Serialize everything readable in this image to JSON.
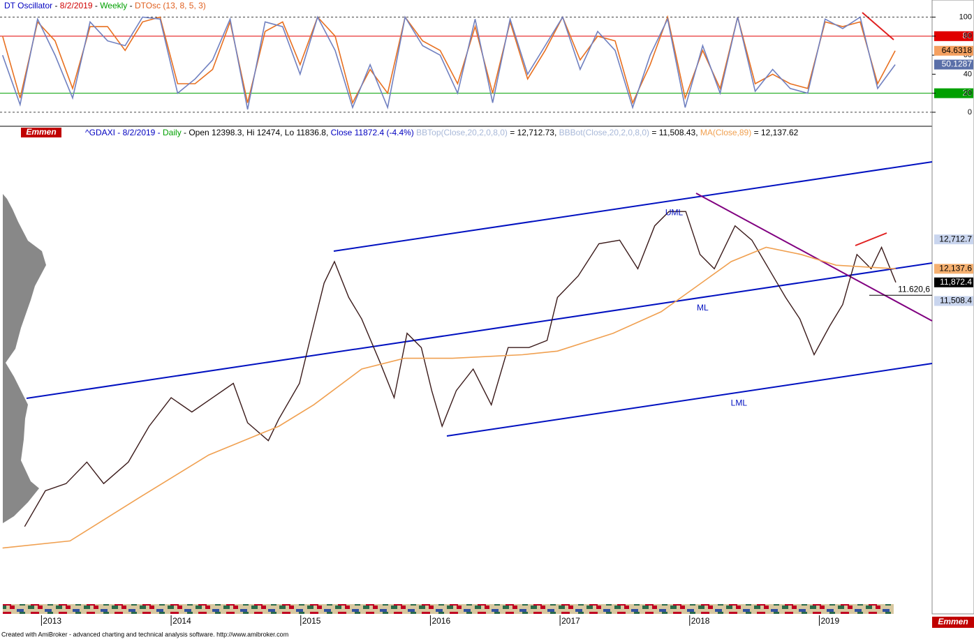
{
  "chart_data": [
    {
      "type": "line",
      "header": [
        {
          "text": "DT Oscillator",
          "color": "#0000c0"
        },
        {
          "text": " - ",
          "color": "#000000"
        },
        {
          "text": "8/2/2019",
          "color": "#d00000"
        },
        {
          "text": " - ",
          "color": "#000000"
        },
        {
          "text": "Weekly",
          "color": "#00a000"
        },
        {
          "text": " - ",
          "color": "#000000"
        },
        {
          "text": "DTOsc (13, 8, 5, 3)",
          "color": "#e06020"
        }
      ],
      "xlim": [
        2012.68,
        2019.87
      ],
      "ylim": [
        -14,
        118
      ],
      "yticks": [
        0,
        20,
        40,
        60,
        80,
        100
      ],
      "levels": [
        {
          "value": 80,
          "color": "#e00000"
        },
        {
          "value": 20,
          "color": "#00a000"
        }
      ],
      "dashed_levels": [
        0,
        100
      ],
      "x": [
        2012.7,
        2012.835,
        2012.97,
        2013.105,
        2013.24,
        2013.375,
        2013.51,
        2013.645,
        2013.78,
        2013.915,
        2014.05,
        2014.185,
        2014.32,
        2014.455,
        2014.59,
        2014.725,
        2014.86,
        2014.995,
        2015.13,
        2015.265,
        2015.4,
        2015.535,
        2015.67,
        2015.805,
        2015.94,
        2016.075,
        2016.21,
        2016.345,
        2016.48,
        2016.615,
        2016.75,
        2016.885,
        2017.02,
        2017.155,
        2017.29,
        2017.425,
        2017.56,
        2017.695,
        2017.83,
        2017.965,
        2018.1,
        2018.235,
        2018.37,
        2018.505,
        2018.64,
        2018.775,
        2018.91,
        2019.045,
        2019.18,
        2019.315,
        2019.45,
        2019.585
      ],
      "series": [
        {
          "color": "#e87020",
          "box_color": "#f5a060",
          "values": [
            80,
            15,
            95,
            75,
            25,
            90,
            90,
            65,
            95,
            100,
            30,
            30,
            45,
            95,
            10,
            85,
            95,
            50,
            100,
            80,
            10,
            45,
            20,
            100,
            75,
            65,
            30,
            90,
            20,
            95,
            35,
            65,
            100,
            55,
            80,
            75,
            10,
            50,
            100,
            15,
            65,
            25,
            100,
            30,
            40,
            30,
            25,
            95,
            90,
            95,
            30,
            64.6318
          ]
        },
        {
          "color": "#7080c0",
          "box_color": "#5a6fa8",
          "values": [
            60,
            8,
            98,
            60,
            15,
            95,
            75,
            70,
            100,
            98,
            20,
            35,
            55,
            98,
            3,
            95,
            90,
            40,
            100,
            65,
            5,
            50,
            5,
            100,
            70,
            60,
            20,
            98,
            10,
            98,
            40,
            70,
            100,
            45,
            85,
            65,
            5,
            60,
            98,
            5,
            70,
            20,
            100,
            22,
            45,
            25,
            20,
            98,
            88,
            100,
            25,
            50.1287
          ]
        }
      ]
    },
    {
      "type": "line",
      "label": "Emmen",
      "header": [
        {
          "text": "^GDAXI - 8/2/2019 - ",
          "color": "#0000c0"
        },
        {
          "text": "Daily",
          "color": "#00a000"
        },
        {
          "text": " - Open 12398.3, Hi 12474, Lo 11836.8, ",
          "color": "#000000"
        },
        {
          "text": "Close 11872.4 (-4.4%)",
          "color": "#0000c0"
        },
        {
          "text": " BBTop(Close,20,2,0,8,0)",
          "color": "#a8b8d8"
        },
        {
          "text": " = 12,712.73, ",
          "color": "#000000"
        },
        {
          "text": "BBBot(Close,20,2,0,8,0)",
          "color": "#a8b8d8"
        },
        {
          "text": " = 11,508.43, ",
          "color": "#000000"
        },
        {
          "text": "MA(Close,89)",
          "color": "#f0a050"
        },
        {
          "text": " = 12,137.62",
          "color": "#000000"
        }
      ],
      "xlim": [
        2012.68,
        2019.87
      ],
      "ylim": [
        5418,
        14911
      ],
      "xticks": [
        2013,
        2014,
        2015,
        2016,
        2017,
        2018,
        2019
      ],
      "annotations": [
        {
          "text": "UML",
          "x": 2017.88,
          "y": 13228
        },
        {
          "text": "ML",
          "x": 2018.1,
          "y": 11368
        },
        {
          "text": "LML",
          "x": 2018.38,
          "y": 9508
        }
      ],
      "right_labels": [
        {
          "value": 12712.7,
          "label": "12,712.7",
          "color": "#c9d5ee",
          "text_color": "#000000"
        },
        {
          "value": 11508.4,
          "label": "11,508.4",
          "color": "#c9d5ee",
          "text_color": "#000000"
        }
      ],
      "level_note": {
        "value": 11620.6,
        "label": "11.620,6"
      },
      "series": [
        {
          "color": "#3a1a1a",
          "last_label": "11,872.4",
          "box_color": "#000000",
          "text_color": "#ffffff",
          "x": [
            2012.87,
            2013.03,
            2013.19,
            2013.35,
            2013.48,
            2013.67,
            2013.83,
            2014.0,
            2014.16,
            2014.32,
            2014.48,
            2014.59,
            2014.75,
            2014.83,
            2014.99,
            2015.07,
            2015.18,
            2015.26,
            2015.37,
            2015.47,
            2015.61,
            2015.72,
            2015.82,
            2015.93,
            2016.01,
            2016.09,
            2016.2,
            2016.33,
            2016.47,
            2016.6,
            2016.76,
            2016.9,
            2016.98,
            2017.14,
            2017.3,
            2017.46,
            2017.6,
            2017.73,
            2017.84,
            2017.97,
            2018.08,
            2018.19,
            2018.35,
            2018.48,
            2018.61,
            2018.74,
            2018.85,
            2018.96,
            2019.08,
            2019.18,
            2019.29,
            2019.4,
            2019.48,
            2019.59
          ],
          "values": [
            7098,
            7798,
            7938,
            8358,
            7938,
            8358,
            9058,
            9618,
            9338,
            9618,
            9898,
            9128,
            8778,
            9198,
            9898,
            10738,
            11858,
            12278,
            11578,
            11158,
            10318,
            9618,
            10878,
            10598,
            9758,
            9058,
            9758,
            10178,
            9478,
            10598,
            10598,
            10738,
            11578,
            11998,
            12628,
            12698,
            12138,
            12978,
            13258,
            13258,
            12418,
            12138,
            12978,
            12698,
            12138,
            11578,
            11158,
            10458,
            11018,
            11438,
            12418,
            12138,
            12558,
            11872.4
          ]
        },
        {
          "color": "#f0a050",
          "last_label": "12,137.6",
          "box_color": "#f5b070",
          "text_color": "#000000",
          "x": [
            2012.7,
            2013.22,
            2013.75,
            2014.29,
            2014.83,
            2015.1,
            2015.47,
            2015.8,
            2016.17,
            2016.71,
            2016.98,
            2017.41,
            2017.78,
            2018.05,
            2018.32,
            2018.59,
            2018.86,
            2019.13,
            2019.59
          ],
          "values": [
            6678,
            6818,
            7658,
            8498,
            9058,
            9478,
            10178,
            10388,
            10388,
            10458,
            10528,
            10878,
            11298,
            11788,
            12278,
            12558,
            12418,
            12208,
            12137.6
          ]
        }
      ]
    }
  ],
  "footer": "Created with AmiBroker - advanced charting and technical analysis software. http://www.amibroker.com"
}
